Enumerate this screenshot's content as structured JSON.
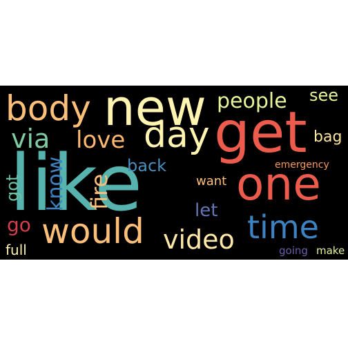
{
  "word_cloud": {
    "background_color": "#000000",
    "words": [
      {
        "id": "like",
        "text": "like",
        "color": "#56b3ad"
      },
      {
        "id": "new",
        "text": "new",
        "color": "#fff4b0"
      },
      {
        "id": "get",
        "text": "get",
        "color": "#ec5b4b"
      },
      {
        "id": "one",
        "text": "one",
        "color": "#ec5b4b"
      },
      {
        "id": "body",
        "text": "body",
        "color": "#fdc07a"
      },
      {
        "id": "day",
        "text": "day",
        "color": "#fff4b0"
      },
      {
        "id": "would",
        "text": "would",
        "color": "#fdc07a"
      },
      {
        "id": "time",
        "text": "time",
        "color": "#3d83c2"
      },
      {
        "id": "video",
        "text": "video",
        "color": "#fee8a8"
      },
      {
        "id": "people",
        "text": "people",
        "color": "#e6f59a"
      },
      {
        "id": "see",
        "text": "see",
        "color": "#e6f59a"
      },
      {
        "id": "via",
        "text": "via",
        "color": "#7ecba4"
      },
      {
        "id": "love",
        "text": "love",
        "color": "#fdb76f"
      },
      {
        "id": "back",
        "text": "back",
        "color": "#4a8fbd"
      },
      {
        "id": "know",
        "text": "know",
        "color": "#3d83c2"
      },
      {
        "id": "fire",
        "text": "fire",
        "color": "#fdc07a"
      },
      {
        "id": "got",
        "text": "got",
        "color": "#6cc2a4"
      },
      {
        "id": "go",
        "text": "go",
        "color": "#d53e4f"
      },
      {
        "id": "want",
        "text": "want",
        "color": "#fdc07a"
      },
      {
        "id": "let",
        "text": "let",
        "color": "#6576b6"
      },
      {
        "id": "bag",
        "text": "bag",
        "color": "#fee5a0"
      },
      {
        "id": "emergency",
        "text": "emergency",
        "color": "#f89a5a"
      },
      {
        "id": "full",
        "text": "full",
        "color": "#fff4b0"
      },
      {
        "id": "going",
        "text": "going",
        "color": "#6a5fa8"
      },
      {
        "id": "make",
        "text": "make",
        "color": "#e6f59a"
      }
    ]
  }
}
